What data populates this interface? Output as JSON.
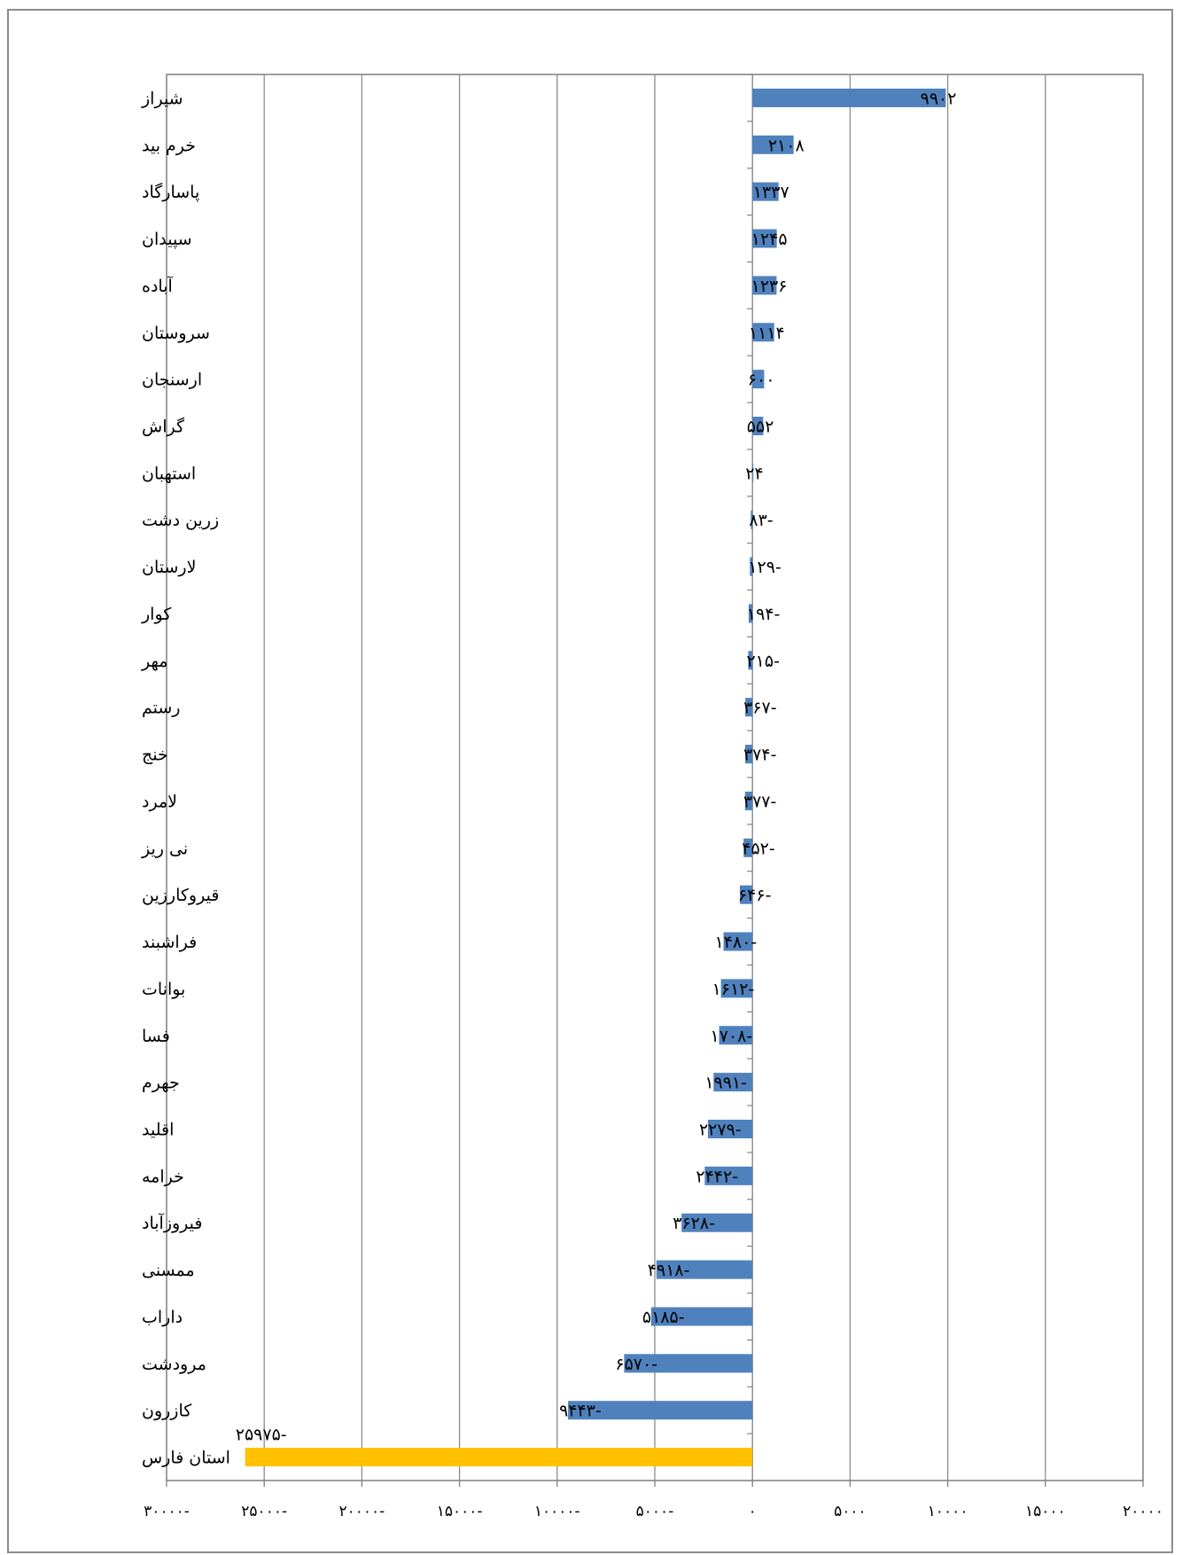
{
  "chart_data": {
    "type": "bar",
    "orientation": "horizontal",
    "title": "",
    "xlabel": "",
    "ylabel": "",
    "xlim": [
      -30000,
      20000
    ],
    "grid": true,
    "legend": "none",
    "colors": {
      "bar": "#4f81bd",
      "highlight": "#ffc000",
      "grid": "#8c8c8c",
      "axis": "#7f7f7f"
    },
    "categories": [
      "شیراز",
      "خرم بید",
      "پاسارگاد",
      "سپیدان",
      "آباده",
      "سروستان",
      "ارسنجان",
      "گراش",
      "استهبان",
      "زرین دشت",
      "لارستان",
      "کوار",
      "مهر",
      "رستم",
      "خنج",
      "لامرد",
      "نی ریز",
      "قیروکارزین",
      "فراشبند",
      "بوانات",
      "فسا",
      "جهرم",
      "اقلید",
      "خرامه",
      "فیروزآباد",
      "ممسنی",
      "داراب",
      "مرودشت",
      "کازرون",
      "استان فارس"
    ],
    "values": [
      9902,
      2108,
      1337,
      1245,
      1236,
      1114,
      600,
      552,
      24,
      -83,
      -129,
      -194,
      -215,
      -367,
      -374,
      -377,
      -452,
      -646,
      -1480,
      -1612,
      -1708,
      -1991,
      -2279,
      -2442,
      -3628,
      -4918,
      -5185,
      -6570,
      -9443,
      -25975
    ],
    "value_labels": [
      "۹۹۰۲",
      "۲۱۰۸",
      "۱۳۳۷",
      "۱۲۴۵",
      "۱۲۳۶",
      "۱۱۱۴",
      "۶۰۰",
      "۵۵۲",
      "۲۴",
      "-۸۳",
      "-۱۲۹",
      "-۱۹۴",
      "-۲۱۵",
      "-۳۶۷",
      "-۳۷۴",
      "-۳۷۷",
      "-۴۵۲",
      "-۶۴۶",
      "-۱۴۸۰",
      "-۱۶۱۲",
      "-۱۷۰۸",
      "-۱۹۹۱",
      "-۲۲۷۹",
      "-۲۴۴۲",
      "-۳۶۲۸",
      "-۴۹۱۸",
      "-۵۱۸۵",
      "-۶۵۷۰",
      "-۹۴۴۳",
      "-۲۵۹۷۵"
    ],
    "highlight_index": 29,
    "x_ticks": [
      -30000,
      -25000,
      -20000,
      -15000,
      -10000,
      -5000,
      0,
      5000,
      10000,
      15000,
      20000
    ],
    "x_tick_labels": [
      "-۳۰۰۰۰",
      "-۲۵۰۰۰",
      "-۲۰۰۰۰",
      "-۱۵۰۰۰",
      "-۱۰۰۰۰",
      "-۵۰۰۰",
      "۰",
      "۵۰۰۰",
      "۱۰۰۰۰",
      "۱۵۰۰۰",
      "۲۰۰۰۰"
    ]
  }
}
